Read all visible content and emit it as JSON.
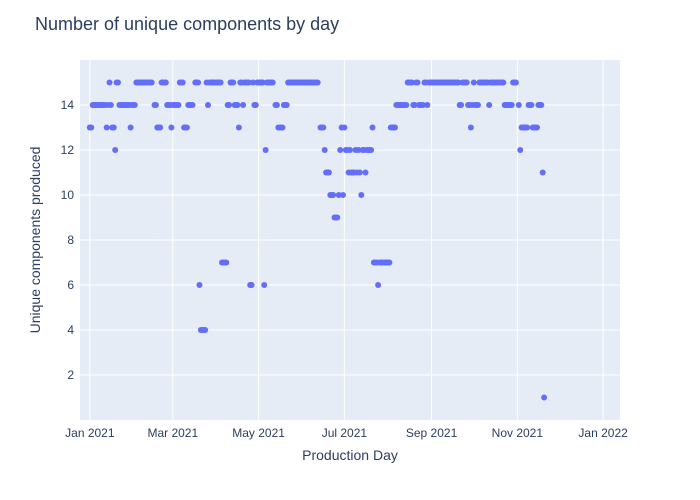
{
  "chart_data": {
    "type": "scatter",
    "title": "Number of unique components by day",
    "xlabel": "Production Day",
    "ylabel": "Unique components produced",
    "x_range": [
      "2020-12-25",
      "2022-01-13"
    ],
    "ylim": [
      0,
      16
    ],
    "y_ticks": [
      2,
      4,
      6,
      8,
      10,
      12,
      14
    ],
    "x_ticks": [
      {
        "date": "2021-01-01",
        "label": "Jan 2021"
      },
      {
        "date": "2021-03-01",
        "label": "Mar 2021"
      },
      {
        "date": "2021-05-01",
        "label": "May 2021"
      },
      {
        "date": "2021-07-01",
        "label": "Jul 2021"
      },
      {
        "date": "2021-09-01",
        "label": "Sep 2021"
      },
      {
        "date": "2021-11-01",
        "label": "Nov 2021"
      },
      {
        "date": "2022-01-01",
        "label": "Jan 2022"
      }
    ],
    "grid": true,
    "colors": {
      "marker": "#636efa",
      "plot_bg": "#e5ecf6",
      "grid": "#ffffff",
      "text": "#2a3f5f"
    },
    "points": [
      [
        "2021-01-01",
        13
      ],
      [
        "2021-01-02",
        13
      ],
      [
        "2021-01-03",
        14
      ],
      [
        "2021-01-04",
        14
      ],
      [
        "2021-01-05",
        14
      ],
      [
        "2021-01-06",
        14
      ],
      [
        "2021-01-07",
        14
      ],
      [
        "2021-01-08",
        14
      ],
      [
        "2021-01-09",
        14
      ],
      [
        "2021-01-10",
        14
      ],
      [
        "2021-01-11",
        14
      ],
      [
        "2021-01-12",
        14
      ],
      [
        "2021-01-13",
        13
      ],
      [
        "2021-01-14",
        14
      ],
      [
        "2021-01-15",
        15
      ],
      [
        "2021-01-16",
        14
      ],
      [
        "2021-01-17",
        13
      ],
      [
        "2021-01-18",
        13
      ],
      [
        "2021-01-19",
        12
      ],
      [
        "2021-01-20",
        15
      ],
      [
        "2021-01-21",
        15
      ],
      [
        "2021-01-22",
        14
      ],
      [
        "2021-01-23",
        14
      ],
      [
        "2021-01-24",
        14
      ],
      [
        "2021-01-25",
        14
      ],
      [
        "2021-01-26",
        14
      ],
      [
        "2021-01-27",
        14
      ],
      [
        "2021-01-28",
        14
      ],
      [
        "2021-01-29",
        14
      ],
      [
        "2021-01-30",
        13
      ],
      [
        "2021-01-31",
        14
      ],
      [
        "2021-02-01",
        14
      ],
      [
        "2021-02-02",
        14
      ],
      [
        "2021-02-03",
        15
      ],
      [
        "2021-02-04",
        15
      ],
      [
        "2021-02-05",
        15
      ],
      [
        "2021-02-06",
        15
      ],
      [
        "2021-02-07",
        15
      ],
      [
        "2021-02-08",
        15
      ],
      [
        "2021-02-09",
        15
      ],
      [
        "2021-02-10",
        15
      ],
      [
        "2021-02-11",
        15
      ],
      [
        "2021-02-12",
        15
      ],
      [
        "2021-02-13",
        15
      ],
      [
        "2021-02-14",
        15
      ],
      [
        "2021-02-16",
        14
      ],
      [
        "2021-02-17",
        14
      ],
      [
        "2021-02-18",
        13
      ],
      [
        "2021-02-19",
        13
      ],
      [
        "2021-02-20",
        13
      ],
      [
        "2021-02-21",
        15
      ],
      [
        "2021-02-22",
        15
      ],
      [
        "2021-02-23",
        15
      ],
      [
        "2021-02-24",
        15
      ],
      [
        "2021-02-25",
        14
      ],
      [
        "2021-02-26",
        14
      ],
      [
        "2021-02-27",
        14
      ],
      [
        "2021-02-28",
        13
      ],
      [
        "2021-03-01",
        14
      ],
      [
        "2021-03-02",
        14
      ],
      [
        "2021-03-03",
        14
      ],
      [
        "2021-03-04",
        14
      ],
      [
        "2021-03-05",
        14
      ],
      [
        "2021-03-06",
        15
      ],
      [
        "2021-03-07",
        15
      ],
      [
        "2021-03-08",
        15
      ],
      [
        "2021-03-09",
        13
      ],
      [
        "2021-03-10",
        13
      ],
      [
        "2021-03-11",
        13
      ],
      [
        "2021-03-12",
        14
      ],
      [
        "2021-03-13",
        14
      ],
      [
        "2021-03-14",
        14
      ],
      [
        "2021-03-15",
        14
      ],
      [
        "2021-03-17",
        15
      ],
      [
        "2021-03-18",
        15
      ],
      [
        "2021-03-19",
        15
      ],
      [
        "2021-03-20",
        6
      ],
      [
        "2021-03-21",
        4
      ],
      [
        "2021-03-22",
        4
      ],
      [
        "2021-03-23",
        4
      ],
      [
        "2021-03-24",
        4
      ],
      [
        "2021-03-25",
        15
      ],
      [
        "2021-03-26",
        14
      ],
      [
        "2021-03-27",
        15
      ],
      [
        "2021-03-28",
        15
      ],
      [
        "2021-03-29",
        15
      ],
      [
        "2021-03-30",
        15
      ],
      [
        "2021-03-31",
        15
      ],
      [
        "2021-04-01",
        15
      ],
      [
        "2021-04-02",
        15
      ],
      [
        "2021-04-03",
        15
      ],
      [
        "2021-04-04",
        15
      ],
      [
        "2021-04-05",
        7
      ],
      [
        "2021-04-06",
        7
      ],
      [
        "2021-04-07",
        7
      ],
      [
        "2021-04-08",
        7
      ],
      [
        "2021-04-09",
        14
      ],
      [
        "2021-04-10",
        14
      ],
      [
        "2021-04-11",
        15
      ],
      [
        "2021-04-12",
        15
      ],
      [
        "2021-04-13",
        15
      ],
      [
        "2021-04-14",
        14
      ],
      [
        "2021-04-15",
        14
      ],
      [
        "2021-04-16",
        14
      ],
      [
        "2021-04-17",
        13
      ],
      [
        "2021-04-18",
        15
      ],
      [
        "2021-04-19",
        15
      ],
      [
        "2021-04-20",
        14
      ],
      [
        "2021-04-21",
        15
      ],
      [
        "2021-04-22",
        15
      ],
      [
        "2021-04-23",
        15
      ],
      [
        "2021-04-24",
        15
      ],
      [
        "2021-04-25",
        6
      ],
      [
        "2021-04-26",
        6
      ],
      [
        "2021-04-27",
        15
      ],
      [
        "2021-04-28",
        14
      ],
      [
        "2021-04-29",
        14
      ],
      [
        "2021-04-30",
        15
      ],
      [
        "2021-05-01",
        15
      ],
      [
        "2021-05-02",
        15
      ],
      [
        "2021-05-03",
        15
      ],
      [
        "2021-05-04",
        15
      ],
      [
        "2021-05-05",
        6
      ],
      [
        "2021-05-06",
        12
      ],
      [
        "2021-05-07",
        15
      ],
      [
        "2021-05-08",
        15
      ],
      [
        "2021-05-09",
        15
      ],
      [
        "2021-05-10",
        15
      ],
      [
        "2021-05-11",
        15
      ],
      [
        "2021-05-13",
        14
      ],
      [
        "2021-05-14",
        14
      ],
      [
        "2021-05-15",
        13
      ],
      [
        "2021-05-16",
        13
      ],
      [
        "2021-05-17",
        13
      ],
      [
        "2021-05-18",
        13
      ],
      [
        "2021-05-19",
        14
      ],
      [
        "2021-05-20",
        14
      ],
      [
        "2021-05-21",
        14
      ],
      [
        "2021-05-22",
        15
      ],
      [
        "2021-05-23",
        15
      ],
      [
        "2021-05-24",
        15
      ],
      [
        "2021-05-25",
        15
      ],
      [
        "2021-05-26",
        15
      ],
      [
        "2021-05-27",
        15
      ],
      [
        "2021-05-28",
        15
      ],
      [
        "2021-05-29",
        15
      ],
      [
        "2021-05-30",
        15
      ],
      [
        "2021-05-31",
        15
      ],
      [
        "2021-06-01",
        15
      ],
      [
        "2021-06-02",
        15
      ],
      [
        "2021-06-03",
        15
      ],
      [
        "2021-06-04",
        15
      ],
      [
        "2021-06-05",
        15
      ],
      [
        "2021-06-06",
        15
      ],
      [
        "2021-06-07",
        15
      ],
      [
        "2021-06-08",
        15
      ],
      [
        "2021-06-09",
        15
      ],
      [
        "2021-06-10",
        15
      ],
      [
        "2021-06-11",
        15
      ],
      [
        "2021-06-12",
        15
      ],
      [
        "2021-06-14",
        13
      ],
      [
        "2021-06-15",
        13
      ],
      [
        "2021-06-16",
        13
      ],
      [
        "2021-06-17",
        12
      ],
      [
        "2021-06-18",
        11
      ],
      [
        "2021-06-19",
        11
      ],
      [
        "2021-06-20",
        11
      ],
      [
        "2021-06-21",
        10
      ],
      [
        "2021-06-22",
        10
      ],
      [
        "2021-06-23",
        10
      ],
      [
        "2021-06-24",
        9
      ],
      [
        "2021-06-25",
        9
      ],
      [
        "2021-06-26",
        9
      ],
      [
        "2021-06-27",
        10
      ],
      [
        "2021-06-28",
        12
      ],
      [
        "2021-06-29",
        13
      ],
      [
        "2021-06-30",
        10
      ],
      [
        "2021-07-01",
        13
      ],
      [
        "2021-07-02",
        12
      ],
      [
        "2021-07-03",
        12
      ],
      [
        "2021-07-04",
        11
      ],
      [
        "2021-07-05",
        12
      ],
      [
        "2021-07-06",
        11
      ],
      [
        "2021-07-07",
        11
      ],
      [
        "2021-07-08",
        11
      ],
      [
        "2021-07-09",
        12
      ],
      [
        "2021-07-10",
        11
      ],
      [
        "2021-07-11",
        12
      ],
      [
        "2021-07-12",
        11
      ],
      [
        "2021-07-13",
        10
      ],
      [
        "2021-07-14",
        12
      ],
      [
        "2021-07-15",
        12
      ],
      [
        "2021-07-16",
        11
      ],
      [
        "2021-07-17",
        12
      ],
      [
        "2021-07-18",
        12
      ],
      [
        "2021-07-19",
        12
      ],
      [
        "2021-07-20",
        12
      ],
      [
        "2021-07-21",
        13
      ],
      [
        "2021-07-22",
        7
      ],
      [
        "2021-07-23",
        7
      ],
      [
        "2021-07-24",
        7
      ],
      [
        "2021-07-25",
        6
      ],
      [
        "2021-07-26",
        7
      ],
      [
        "2021-07-27",
        7
      ],
      [
        "2021-07-28",
        7
      ],
      [
        "2021-07-29",
        7
      ],
      [
        "2021-07-30",
        7
      ],
      [
        "2021-07-31",
        7
      ],
      [
        "2021-08-01",
        7
      ],
      [
        "2021-08-02",
        7
      ],
      [
        "2021-08-03",
        13
      ],
      [
        "2021-08-04",
        13
      ],
      [
        "2021-08-05",
        13
      ],
      [
        "2021-08-06",
        13
      ],
      [
        "2021-08-07",
        14
      ],
      [
        "2021-08-08",
        14
      ],
      [
        "2021-08-09",
        14
      ],
      [
        "2021-08-10",
        14
      ],
      [
        "2021-08-11",
        14
      ],
      [
        "2021-08-12",
        14
      ],
      [
        "2021-08-13",
        14
      ],
      [
        "2021-08-14",
        14
      ],
      [
        "2021-08-15",
        15
      ],
      [
        "2021-08-16",
        15
      ],
      [
        "2021-08-17",
        15
      ],
      [
        "2021-08-18",
        15
      ],
      [
        "2021-08-19",
        14
      ],
      [
        "2021-08-20",
        14
      ],
      [
        "2021-08-21",
        15
      ],
      [
        "2021-08-22",
        15
      ],
      [
        "2021-08-23",
        14
      ],
      [
        "2021-08-24",
        14
      ],
      [
        "2021-08-25",
        14
      ],
      [
        "2021-08-26",
        14
      ],
      [
        "2021-08-27",
        15
      ],
      [
        "2021-08-28",
        15
      ],
      [
        "2021-08-29",
        14
      ],
      [
        "2021-08-30",
        15
      ],
      [
        "2021-08-31",
        15
      ],
      [
        "2021-09-01",
        15
      ],
      [
        "2021-09-02",
        15
      ],
      [
        "2021-09-03",
        15
      ],
      [
        "2021-09-04",
        15
      ],
      [
        "2021-09-05",
        15
      ],
      [
        "2021-09-06",
        15
      ],
      [
        "2021-09-07",
        15
      ],
      [
        "2021-09-08",
        15
      ],
      [
        "2021-09-09",
        15
      ],
      [
        "2021-09-10",
        15
      ],
      [
        "2021-09-11",
        15
      ],
      [
        "2021-09-12",
        15
      ],
      [
        "2021-09-13",
        15
      ],
      [
        "2021-09-14",
        15
      ],
      [
        "2021-09-15",
        15
      ],
      [
        "2021-09-16",
        15
      ],
      [
        "2021-09-17",
        15
      ],
      [
        "2021-09-18",
        15
      ],
      [
        "2021-09-19",
        15
      ],
      [
        "2021-09-20",
        15
      ],
      [
        "2021-09-21",
        14
      ],
      [
        "2021-09-22",
        14
      ],
      [
        "2021-09-23",
        15
      ],
      [
        "2021-09-24",
        15
      ],
      [
        "2021-09-25",
        15
      ],
      [
        "2021-09-26",
        15
      ],
      [
        "2021-09-27",
        14
      ],
      [
        "2021-09-28",
        14
      ],
      [
        "2021-09-29",
        13
      ],
      [
        "2021-09-30",
        14
      ],
      [
        "2021-10-01",
        15
      ],
      [
        "2021-10-02",
        14
      ],
      [
        "2021-10-03",
        14
      ],
      [
        "2021-10-04",
        14
      ],
      [
        "2021-10-05",
        15
      ],
      [
        "2021-10-06",
        15
      ],
      [
        "2021-10-07",
        15
      ],
      [
        "2021-10-08",
        15
      ],
      [
        "2021-10-09",
        15
      ],
      [
        "2021-10-10",
        15
      ],
      [
        "2021-10-11",
        15
      ],
      [
        "2021-10-12",
        14
      ],
      [
        "2021-10-13",
        15
      ],
      [
        "2021-10-14",
        15
      ],
      [
        "2021-10-15",
        15
      ],
      [
        "2021-10-16",
        15
      ],
      [
        "2021-10-17",
        15
      ],
      [
        "2021-10-18",
        15
      ],
      [
        "2021-10-19",
        15
      ],
      [
        "2021-10-20",
        15
      ],
      [
        "2021-10-21",
        15
      ],
      [
        "2021-10-22",
        15
      ],
      [
        "2021-10-23",
        14
      ],
      [
        "2021-10-24",
        14
      ],
      [
        "2021-10-25",
        14
      ],
      [
        "2021-10-26",
        14
      ],
      [
        "2021-10-27",
        14
      ],
      [
        "2021-10-28",
        14
      ],
      [
        "2021-10-29",
        15
      ],
      [
        "2021-10-30",
        15
      ],
      [
        "2021-10-31",
        15
      ],
      [
        "2021-11-02",
        14
      ],
      [
        "2021-11-03",
        12
      ],
      [
        "2021-11-04",
        13
      ],
      [
        "2021-11-05",
        13
      ],
      [
        "2021-11-06",
        13
      ],
      [
        "2021-11-07",
        13
      ],
      [
        "2021-11-08",
        13
      ],
      [
        "2021-11-09",
        14
      ],
      [
        "2021-11-10",
        14
      ],
      [
        "2021-11-11",
        14
      ],
      [
        "2021-11-12",
        13
      ],
      [
        "2021-11-13",
        13
      ],
      [
        "2021-11-14",
        13
      ],
      [
        "2021-11-15",
        13
      ],
      [
        "2021-11-16",
        14
      ],
      [
        "2021-11-17",
        14
      ],
      [
        "2021-11-18",
        14
      ],
      [
        "2021-11-19",
        11
      ],
      [
        "2021-11-20",
        1
      ]
    ]
  }
}
